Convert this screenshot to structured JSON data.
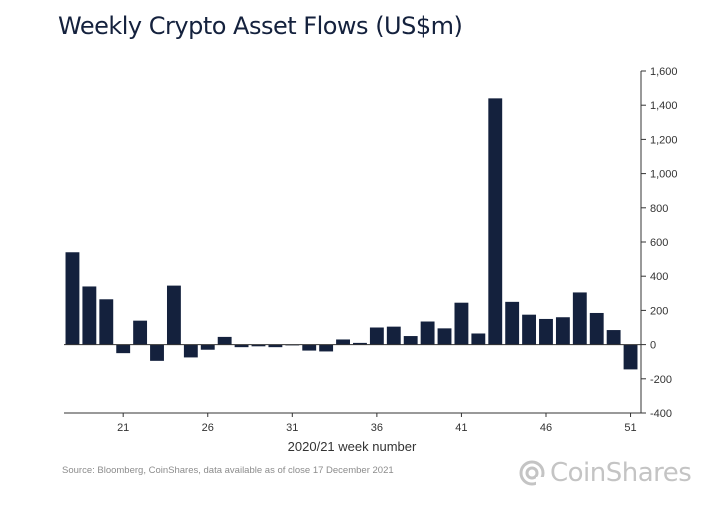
{
  "title": "Weekly Crypto Asset Flows (US$m)",
  "source": "Source: Bloomberg, CoinShares, data available as of close 17 December 2021",
  "logo": {
    "brand": "CoinShares",
    "icon": "coinshares-logo-icon"
  },
  "colors": {
    "bar": "#14213d",
    "axis": "#333333",
    "text": "#333333",
    "logo": "#c4c4c4"
  },
  "chart_data": {
    "type": "bar",
    "xlabel": "2020/21 week number",
    "ylabel": "",
    "ylim": [
      -400,
      1600
    ],
    "yticks": [
      1600,
      1400,
      1200,
      1000,
      800,
      600,
      400,
      200,
      0,
      -200,
      -400
    ],
    "ytick_labels": [
      "1,600",
      "1,400",
      "1,200",
      "1,000",
      "800",
      "600",
      "400",
      "200",
      "0",
      "-200",
      "-400"
    ],
    "y_axis_position": "right",
    "grid": false,
    "legend": "none",
    "x_start": 18,
    "xtick_labels": [
      "21",
      "26",
      "31",
      "36",
      "41",
      "46",
      "51"
    ],
    "categories": [
      18,
      19,
      20,
      21,
      22,
      23,
      24,
      25,
      26,
      27,
      28,
      29,
      30,
      31,
      32,
      33,
      34,
      35,
      36,
      37,
      38,
      39,
      40,
      41,
      42,
      43,
      44,
      45,
      46,
      47,
      48,
      49,
      50,
      51
    ],
    "values": [
      540,
      340,
      265,
      -50,
      140,
      -95,
      345,
      -75,
      -30,
      45,
      -15,
      -10,
      -15,
      0,
      -35,
      -40,
      30,
      10,
      100,
      105,
      50,
      135,
      95,
      245,
      65,
      1440,
      250,
      175,
      150,
      160,
      305,
      185,
      85,
      -145
    ]
  }
}
